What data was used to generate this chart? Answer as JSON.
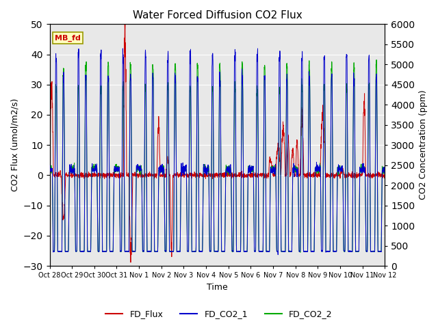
{
  "title": "Water Forced Diffusion CO2 Flux",
  "ylabel_left": "CO2 Flux (umol/m2/s)",
  "ylabel_right": "CO2 Concentration (ppm)",
  "xlabel": "Time",
  "ylim_left": [
    -30,
    50
  ],
  "ylim_right": [
    0,
    6000
  ],
  "yticks_left": [
    -30,
    -20,
    -10,
    0,
    10,
    20,
    30,
    40,
    50
  ],
  "yticks_right": [
    0,
    500,
    1000,
    1500,
    2000,
    2500,
    3000,
    3500,
    4000,
    4500,
    5000,
    5500,
    6000
  ],
  "xtick_labels": [
    "Oct 28",
    "Oct 29",
    "Oct 30",
    "Oct 31",
    "Nov 1",
    "Nov 2",
    "Nov 3",
    "Nov 4",
    "Nov 5",
    "Nov 6",
    "Nov 7",
    "Nov 8",
    "Nov 9",
    "Nov 10",
    "Nov 11",
    "Nov 12"
  ],
  "color_flux": "#cc0000",
  "color_co2_1": "#0000cc",
  "color_co2_2": "#00aa00",
  "legend_labels": [
    "FD_Flux",
    "FD_CO2_1",
    "FD_CO2_2"
  ],
  "annotation_text": "MB_fd",
  "annotation_color": "#cc0000",
  "bg_color": "#e8e8e8",
  "grid_color": "white",
  "linewidth_flux": 0.7,
  "linewidth_co2": 0.7,
  "n_points": 2160,
  "n_days": 15,
  "co2_night_baseline": 2400,
  "co2_day_baseline": 350,
  "co2_spike_peak": 5200,
  "flux_baseline_noise": 0.4
}
